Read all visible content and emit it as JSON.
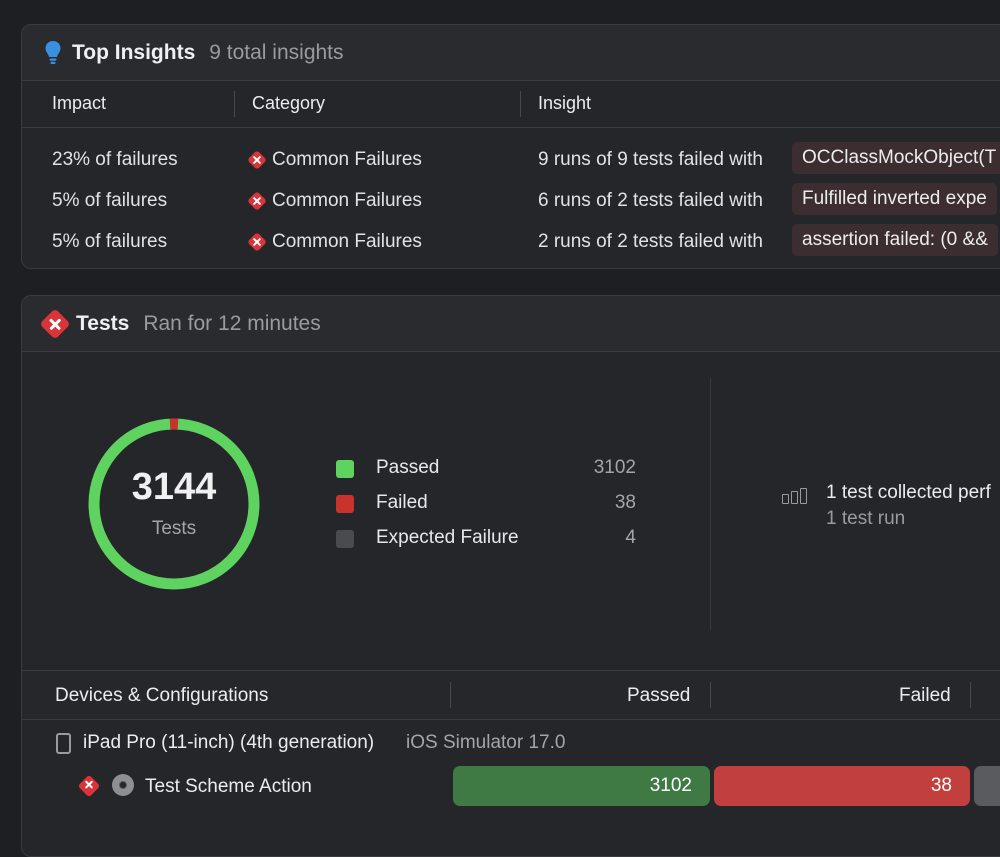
{
  "insights": {
    "title": "Top Insights",
    "subtitle": "9 total insights",
    "columns": [
      "Impact",
      "Category",
      "Insight"
    ],
    "rows": [
      {
        "impact": "23% of failures",
        "category": "Common Failures",
        "insight": "9 runs of 9 tests failed with",
        "chip": "OCClassMockObject(T"
      },
      {
        "impact": "5% of failures",
        "category": "Common Failures",
        "insight": "6 runs of 2 tests failed with",
        "chip": "Fulfilled inverted expe"
      },
      {
        "impact": "5% of failures",
        "category": "Common Failures",
        "insight": "2 runs of 2 tests failed with",
        "chip": "assertion failed: (0 &&"
      }
    ]
  },
  "tests": {
    "title": "Tests",
    "subtitle": "Ran for 12 minutes",
    "total": "3144",
    "total_label": "Tests",
    "legend": [
      {
        "label": "Passed",
        "value": "3102",
        "color": "#5fd35f"
      },
      {
        "label": "Failed",
        "value": "38",
        "color": "#c8342c"
      },
      {
        "label": "Expected Failure",
        "value": "4",
        "color": "#4a4b4f"
      }
    ],
    "perf_main": "1 test collected perf",
    "perf_sub": "1 test run",
    "devices_header": {
      "col1": "Devices & Configurations",
      "col2": "Passed",
      "col3": "Failed"
    },
    "device": {
      "name": "iPad Pro (11-inch) (4th generation)",
      "os": "iOS Simulator 17.0"
    },
    "scheme": {
      "name": "Test Scheme Action",
      "passed": "3102",
      "failed": "38"
    }
  },
  "colors": {
    "passed": "#5fd35f",
    "failed": "#c8342c",
    "expected": "#4a4b4f",
    "error_icon": "#d9343a",
    "bulb": "#3b8fe0"
  }
}
